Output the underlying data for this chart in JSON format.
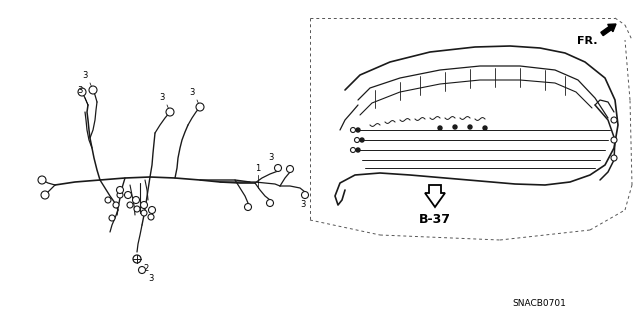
{
  "background_color": "#ffffff",
  "part_number": "SNACB0701",
  "b37_label": "B-37",
  "fr_label": "FR.",
  "line_color": "#1a1a1a",
  "dashed_color": "#555555",
  "text_color": "#000000",
  "figsize": [
    6.4,
    3.19
  ],
  "dpi": 100
}
